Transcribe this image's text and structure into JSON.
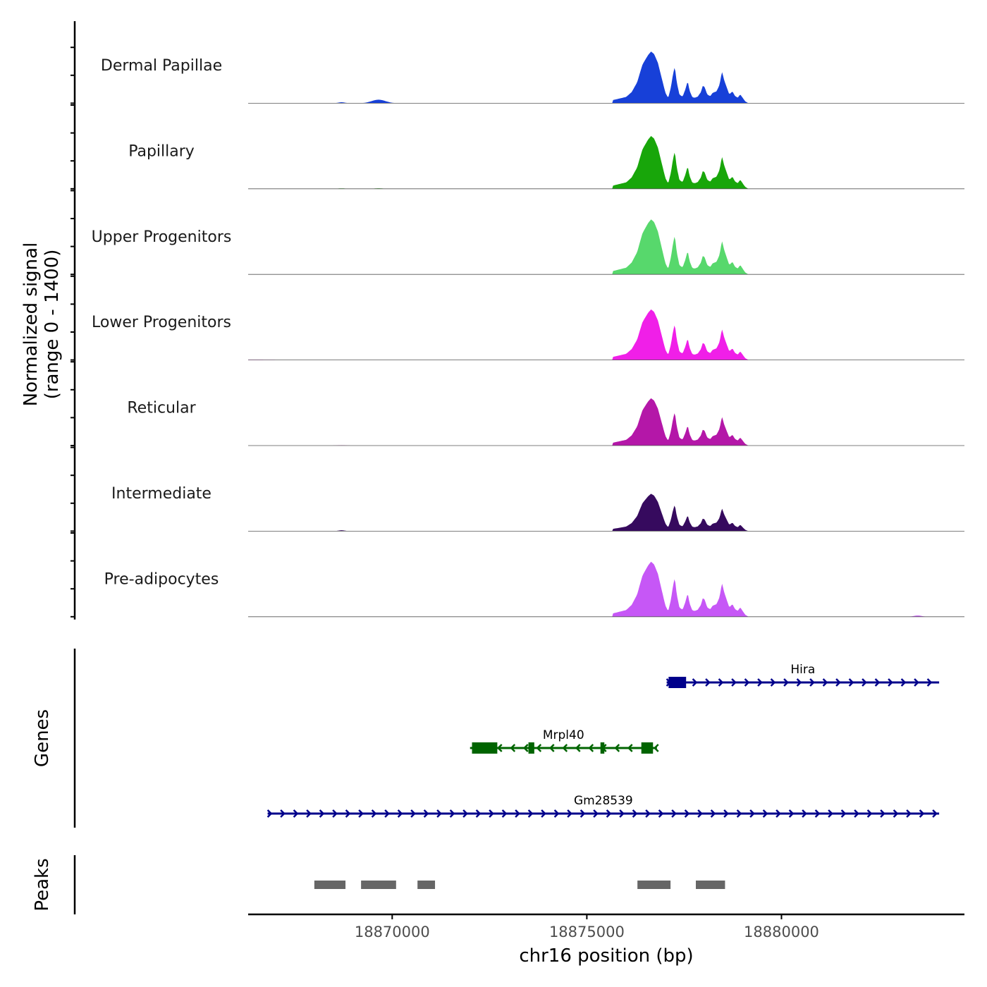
{
  "chart_data": {
    "type": "area",
    "chromosome": "chr16",
    "xlabel": "chr16 position (bp)",
    "xlim": [
      18866300,
      18884700
    ],
    "x_ticks": [
      18870000,
      18875000,
      18880000
    ],
    "x_tick_labels": [
      "18870000",
      "18875000",
      "18880000"
    ],
    "signal_ylabel_line1": "Normalized signal",
    "signal_ylabel_line2": "(range 0 - 1400)",
    "ylim": [
      0,
      1400
    ],
    "genes_label": "Genes",
    "peaks_label": "Peaks",
    "peak_shape_bp": [
      [
        -1000,
        80
      ],
      [
        -640,
        170
      ],
      [
        -500,
        300
      ],
      [
        -360,
        560
      ],
      [
        -220,
        1050
      ],
      [
        -80,
        1300
      ],
      [
        0,
        1400
      ],
      [
        80,
        1330
      ],
      [
        180,
        1080
      ],
      [
        280,
        650
      ],
      [
        370,
        280
      ],
      [
        440,
        140
      ],
      [
        510,
        430
      ],
      [
        560,
        770
      ],
      [
        610,
        1000
      ],
      [
        660,
        560
      ],
      [
        730,
        230
      ],
      [
        810,
        180
      ],
      [
        880,
        370
      ],
      [
        940,
        600
      ],
      [
        990,
        340
      ],
      [
        1060,
        160
      ],
      [
        1130,
        150
      ],
      [
        1200,
        180
      ],
      [
        1280,
        300
      ],
      [
        1330,
        480
      ],
      [
        1380,
        430
      ],
      [
        1440,
        240
      ],
      [
        1520,
        190
      ],
      [
        1580,
        280
      ],
      [
        1680,
        320
      ],
      [
        1760,
        500
      ],
      [
        1820,
        860
      ],
      [
        1880,
        620
      ],
      [
        1960,
        380
      ],
      [
        2010,
        240
      ],
      [
        2090,
        320
      ],
      [
        2160,
        190
      ],
      [
        2230,
        150
      ],
      [
        2290,
        240
      ],
      [
        2350,
        150
      ],
      [
        2420,
        50
      ],
      [
        2500,
        0
      ]
    ],
    "peak_shape_center": 18876650,
    "series": [
      {
        "name": "Dermal Papillae",
        "color": "#1740d8",
        "scale": 0.94,
        "small_bumps": [
          [
            18868700,
            25,
            120
          ],
          [
            18869650,
            90,
            250
          ]
        ]
      },
      {
        "name": "Papillary",
        "color": "#18a60a",
        "scale": 0.96,
        "small_bumps": [
          [
            18868700,
            10,
            150
          ],
          [
            18869650,
            12,
            150
          ]
        ]
      },
      {
        "name": "Upper Progenitors",
        "color": "#57d86c",
        "scale": 1.0,
        "small_bumps": []
      },
      {
        "name": "Lower Progenitors",
        "color": "#f01fe8",
        "scale": 0.92,
        "small_bumps": [
          [
            18866400,
            6,
            700
          ]
        ]
      },
      {
        "name": "Reticular",
        "color": "#b417a8",
        "scale": 0.86,
        "small_bumps": [
          [
            18868700,
            8,
            150
          ]
        ]
      },
      {
        "name": "Intermediate",
        "color": "#360a5e",
        "scale": 0.68,
        "small_bumps": [
          [
            18868700,
            22,
            120
          ]
        ]
      },
      {
        "name": "Pre-adipocytes",
        "color": "#c657f6",
        "scale": 1.0,
        "small_bumps": [
          [
            18883500,
            30,
            150
          ]
        ]
      }
    ],
    "genes": [
      {
        "name": "Hira",
        "color": "#00008b",
        "strand": "+",
        "start": 18877050,
        "end": 18884050,
        "exons": [
          [
            18877100,
            18877550
          ]
        ]
      },
      {
        "name": "Mrpl40",
        "color": "#006400",
        "strand": "-",
        "start": 18872000,
        "end": 18876800,
        "exons": [
          [
            18872050,
            18872700
          ],
          [
            18873500,
            18873650
          ],
          [
            18875350,
            18875450
          ],
          [
            18876400,
            18876700
          ]
        ]
      },
      {
        "name": "Gm28539",
        "color": "#00008b",
        "strand": "+",
        "start": 18866800,
        "end": 18884050,
        "exons": []
      }
    ],
    "peaks": [
      [
        18868000,
        18868800
      ],
      [
        18869200,
        18870100
      ],
      [
        18870650,
        18871100
      ],
      [
        18876300,
        18877150
      ],
      [
        18877800,
        18878550
      ]
    ],
    "peaks_color": "#666666"
  }
}
